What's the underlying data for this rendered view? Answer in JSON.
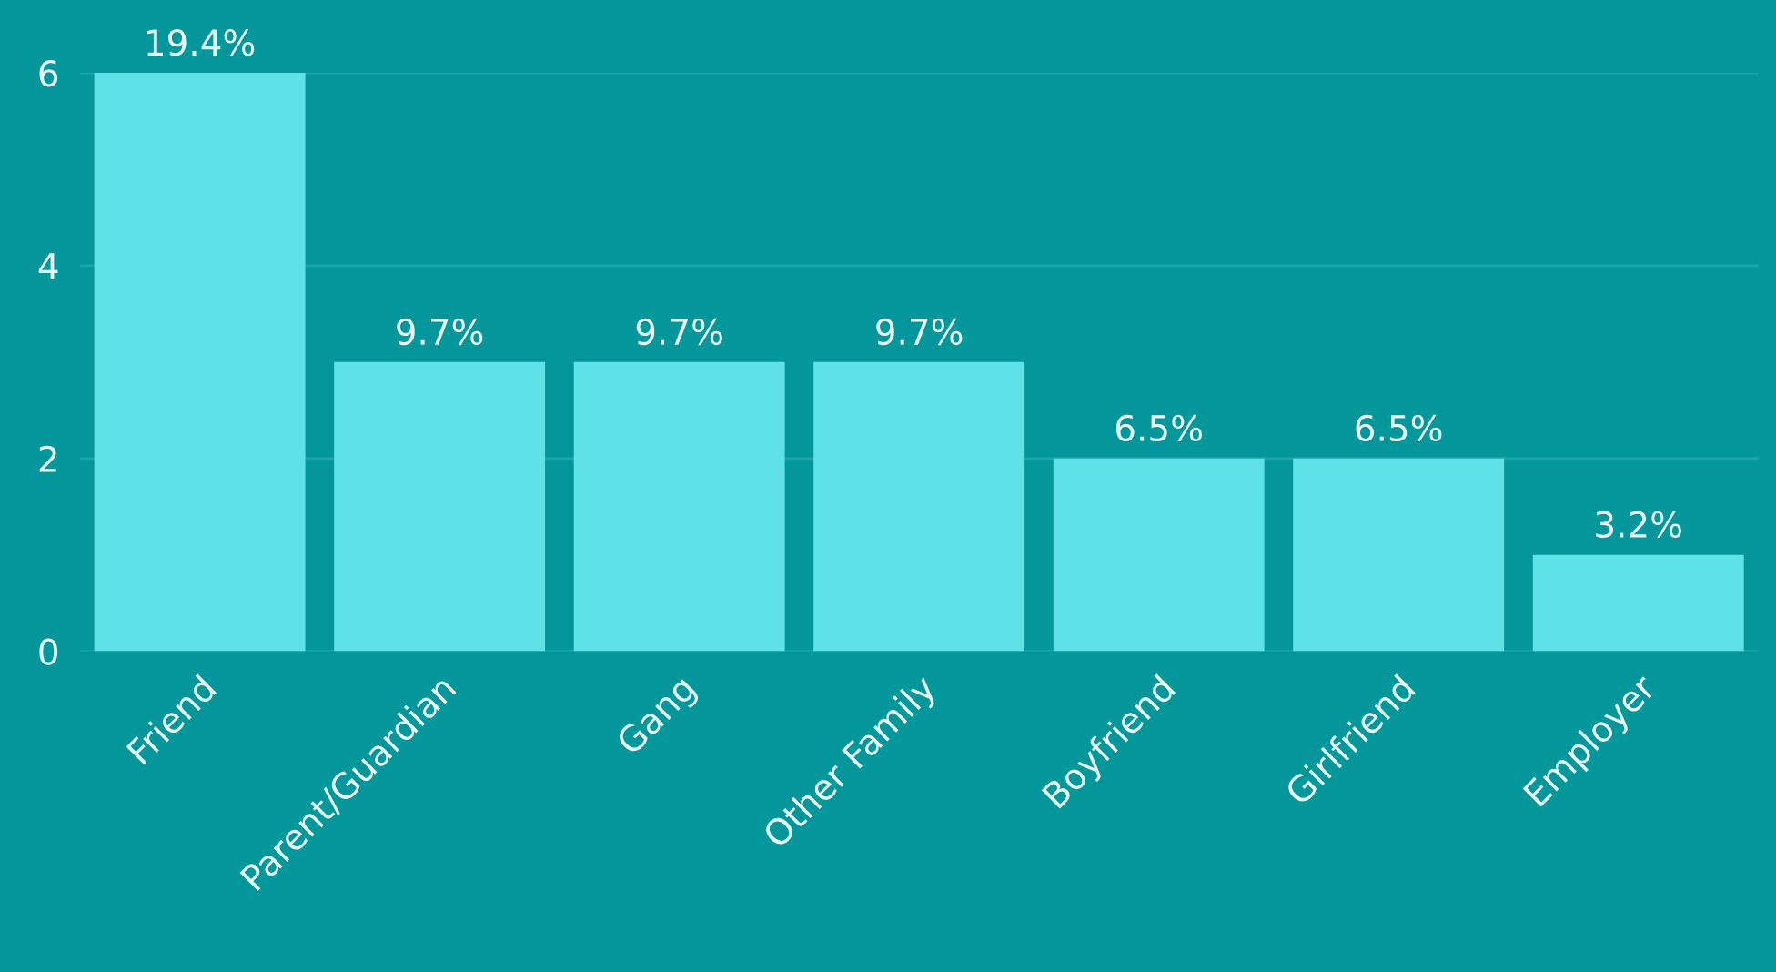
{
  "chart_data": {
    "type": "bar",
    "categories": [
      "Friend",
      "Parent/Guardian",
      "Gang",
      "Other Family",
      "Boyfriend",
      "Girlfriend",
      "Employer"
    ],
    "values": [
      6,
      3,
      3,
      3,
      2,
      2,
      1
    ],
    "annotations": [
      {
        "text": "19.4%",
        "x": "Friend",
        "y": 6
      },
      {
        "text": "9.7%",
        "x": "Parent/Guardian",
        "y": 3
      },
      {
        "text": "9.7%",
        "x": "Gang",
        "y": 3
      },
      {
        "text": "9.7%",
        "x": "Other Family",
        "y": 3
      },
      {
        "text": "6.5%",
        "x": "Boyfriend",
        "y": 2
      },
      {
        "text": "6.5%",
        "x": "Girlfriend",
        "y": 2
      },
      {
        "text": "3.2%",
        "x": "Employer",
        "y": 1
      }
    ],
    "color": "#5ee2e7",
    "ylim": [
      0,
      6
    ],
    "yticks": [
      0,
      2,
      4,
      6
    ],
    "grid": "y",
    "legend": false
  }
}
